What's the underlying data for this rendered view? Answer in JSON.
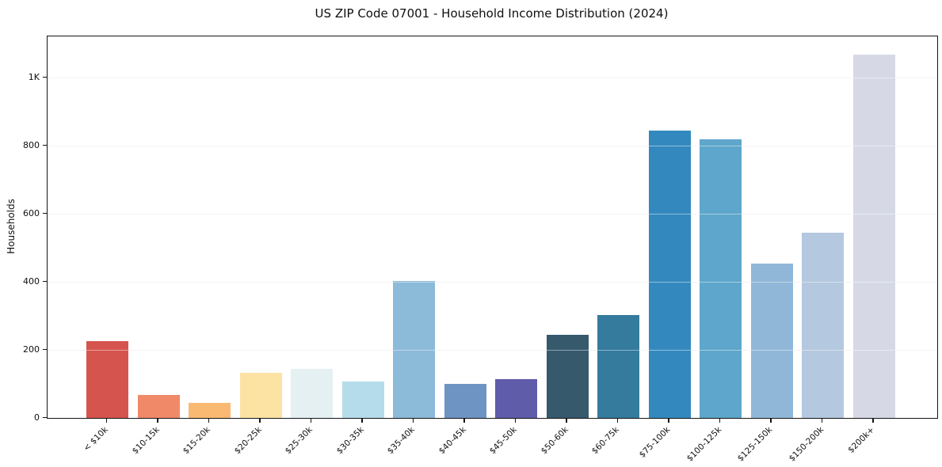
{
  "chart_data": {
    "type": "bar",
    "title": "US ZIP Code 07001 - Household Income Distribution (2024)",
    "xlabel": "",
    "ylabel": "Households",
    "categories": [
      "< $10k",
      "$10-15k",
      "$15-20k",
      "$20-25k",
      "$25-30k",
      "$30-35k",
      "$35-40k",
      "$40-45k",
      "$45-50k",
      "$50-60k",
      "$60-75k",
      "$75-100k",
      "$100-125k",
      "$125-150k",
      "$150-200k",
      "$200k+"
    ],
    "values": [
      225,
      68,
      45,
      133,
      145,
      108,
      403,
      100,
      115,
      245,
      301,
      843,
      818,
      452,
      544,
      1067
    ],
    "bar_colors": [
      "#d6544e",
      "#f08968",
      "#fab973",
      "#fce3a4",
      "#e4f0f2",
      "#b5dcea",
      "#8cbad9",
      "#6e94c4",
      "#5f5caa",
      "#36596c",
      "#347b9e",
      "#3389be",
      "#5ea6cb",
      "#90b7d7",
      "#b4c8df",
      "#d6d9e5"
    ],
    "yticks": [
      {
        "value": 0,
        "label": "0"
      },
      {
        "value": 200,
        "label": "200"
      },
      {
        "value": 400,
        "label": "400"
      },
      {
        "value": 600,
        "label": "600"
      },
      {
        "value": 800,
        "label": "800"
      },
      {
        "value": 1000,
        "label": "1K"
      }
    ],
    "ylim": [
      0,
      1120
    ],
    "grid": "horizontal",
    "legend": "none",
    "background_color": "#ffffff",
    "spine_color": "#141414",
    "gridline_color": "#e8e8e8"
  }
}
